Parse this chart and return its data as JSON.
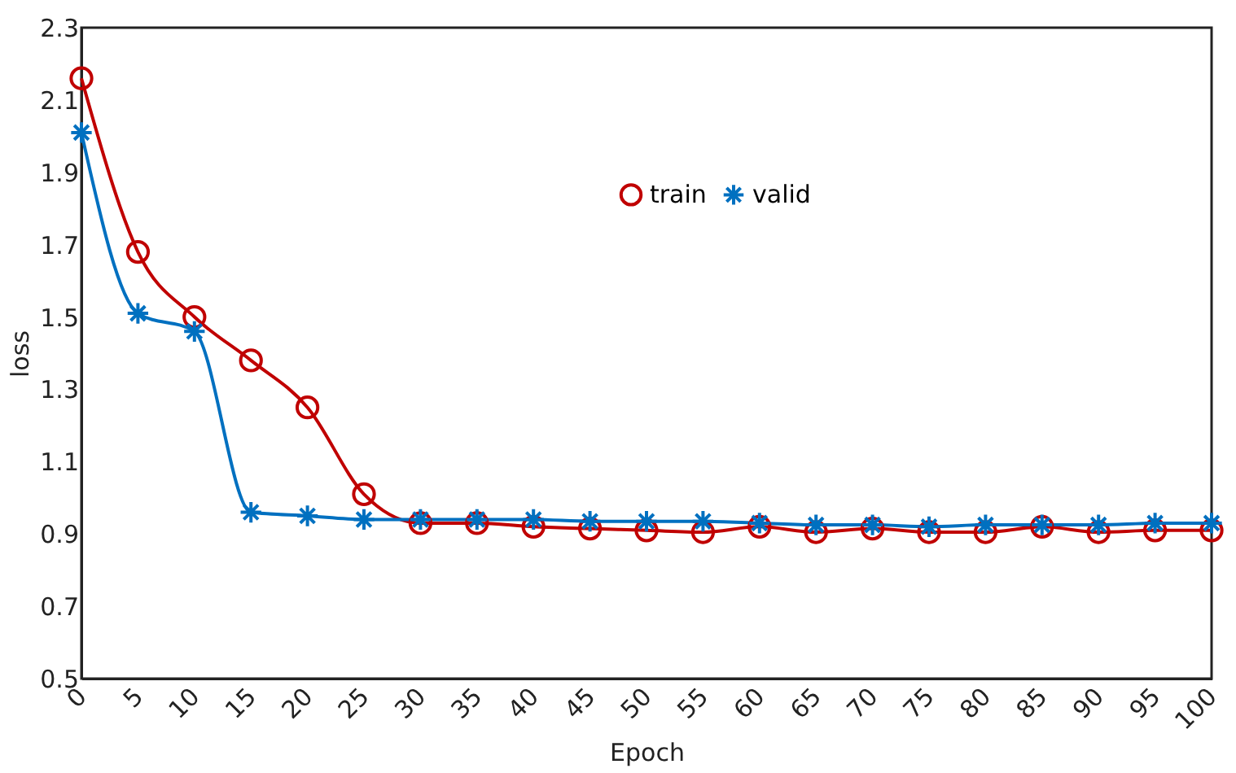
{
  "chart_data": {
    "type": "line",
    "xlabel": "Epoch",
    "ylabel": "loss",
    "x": [
      0,
      5,
      10,
      15,
      20,
      25,
      30,
      35,
      40,
      45,
      50,
      55,
      60,
      65,
      70,
      75,
      80,
      85,
      90,
      95,
      100
    ],
    "series": [
      {
        "name": "train",
        "color": "#c00000",
        "marker": "circle",
        "values": [
          2.16,
          1.68,
          1.5,
          1.38,
          1.25,
          1.01,
          0.93,
          0.93,
          0.92,
          0.915,
          0.91,
          0.905,
          0.92,
          0.905,
          0.915,
          0.905,
          0.905,
          0.92,
          0.905,
          0.91,
          0.91
        ]
      },
      {
        "name": "valid",
        "color": "#0070c0",
        "marker": "cross",
        "values": [
          2.01,
          1.51,
          1.46,
          0.96,
          0.95,
          0.94,
          0.94,
          0.94,
          0.94,
          0.935,
          0.935,
          0.935,
          0.93,
          0.925,
          0.925,
          0.92,
          0.925,
          0.925,
          0.925,
          0.93,
          0.93
        ]
      }
    ],
    "xlim": [
      0,
      100
    ],
    "xticks": [
      0,
      5,
      10,
      15,
      20,
      25,
      30,
      35,
      40,
      45,
      50,
      55,
      60,
      65,
      70,
      75,
      80,
      85,
      90,
      95,
      100
    ],
    "ylim": [
      0.5,
      2.3
    ],
    "yticks": [
      0.5,
      0.7,
      0.9,
      1.1,
      1.3,
      1.5,
      1.7,
      1.9,
      2.1,
      2.3
    ],
    "grid": false,
    "legend": "top",
    "line_style": "solid"
  }
}
